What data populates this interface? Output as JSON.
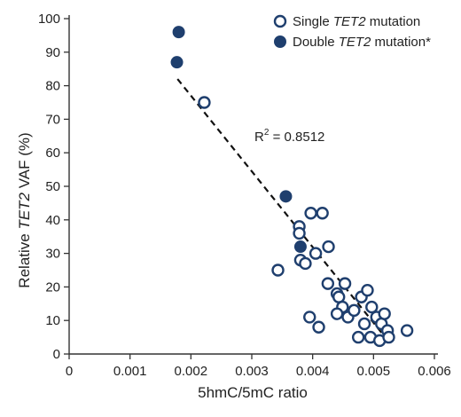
{
  "chart_data": {
    "type": "scatter",
    "xlabel": "5hmC/5mC ratio",
    "ylabel_parts": [
      "Relative ",
      "TET2",
      " VAF (%)"
    ],
    "xlim": [
      0,
      0.006
    ],
    "ylim": [
      0,
      100
    ],
    "x_ticks": [
      "0",
      "0.001",
      "0.002",
      "0.003",
      "0.004",
      "0.005",
      "0.006"
    ],
    "y_ticks": [
      "0",
      "10",
      "20",
      "30",
      "40",
      "50",
      "60",
      "70",
      "80",
      "90",
      "100"
    ],
    "legend_position": "top-right",
    "legend": [
      {
        "parts": [
          "Single ",
          "TET2",
          " mutation"
        ],
        "marker": "open-circle"
      },
      {
        "parts": [
          "Double ",
          "TET2",
          " mutation*"
        ],
        "marker": "filled-circle"
      }
    ],
    "annotation": {
      "text": "R",
      "superscript": "2",
      "suffix": " = 0.8512"
    },
    "colors": {
      "marker": "#1f3f6e",
      "axis": "#333333",
      "trendline": "#111111"
    },
    "trendline": {
      "style": "dashed",
      "x": [
        0.00178,
        0.00528
      ],
      "y": [
        82,
        3
      ]
    },
    "series": [
      {
        "name": "Single TET2 mutation",
        "marker": "open-circle",
        "points": [
          [
            0.00222,
            75
          ],
          [
            0.00343,
            25
          ],
          [
            0.00378,
            38
          ],
          [
            0.00378,
            36
          ],
          [
            0.0038,
            28
          ],
          [
            0.00388,
            27
          ],
          [
            0.00397,
            42
          ],
          [
            0.00416,
            42
          ],
          [
            0.00405,
            30
          ],
          [
            0.00426,
            32
          ],
          [
            0.00425,
            21
          ],
          [
            0.0044,
            18
          ],
          [
            0.00443,
            17
          ],
          [
            0.00449,
            14
          ],
          [
            0.00453,
            21
          ],
          [
            0.0044,
            12
          ],
          [
            0.00395,
            11
          ],
          [
            0.0041,
            8
          ],
          [
            0.00458,
            11
          ],
          [
            0.00468,
            13
          ],
          [
            0.0048,
            17
          ],
          [
            0.0049,
            19
          ],
          [
            0.00475,
            5
          ],
          [
            0.00485,
            9
          ],
          [
            0.00495,
            5
          ],
          [
            0.00497,
            14
          ],
          [
            0.00505,
            11
          ],
          [
            0.0051,
            4
          ],
          [
            0.00513,
            9
          ],
          [
            0.00518,
            12
          ],
          [
            0.00523,
            7
          ],
          [
            0.00525,
            5
          ],
          [
            0.00555,
            7
          ]
        ]
      },
      {
        "name": "Double TET2 mutation*",
        "marker": "filled-circle",
        "points": [
          [
            0.0018,
            96
          ],
          [
            0.00177,
            87
          ],
          [
            0.00356,
            47
          ],
          [
            0.0038,
            32
          ]
        ]
      }
    ]
  }
}
